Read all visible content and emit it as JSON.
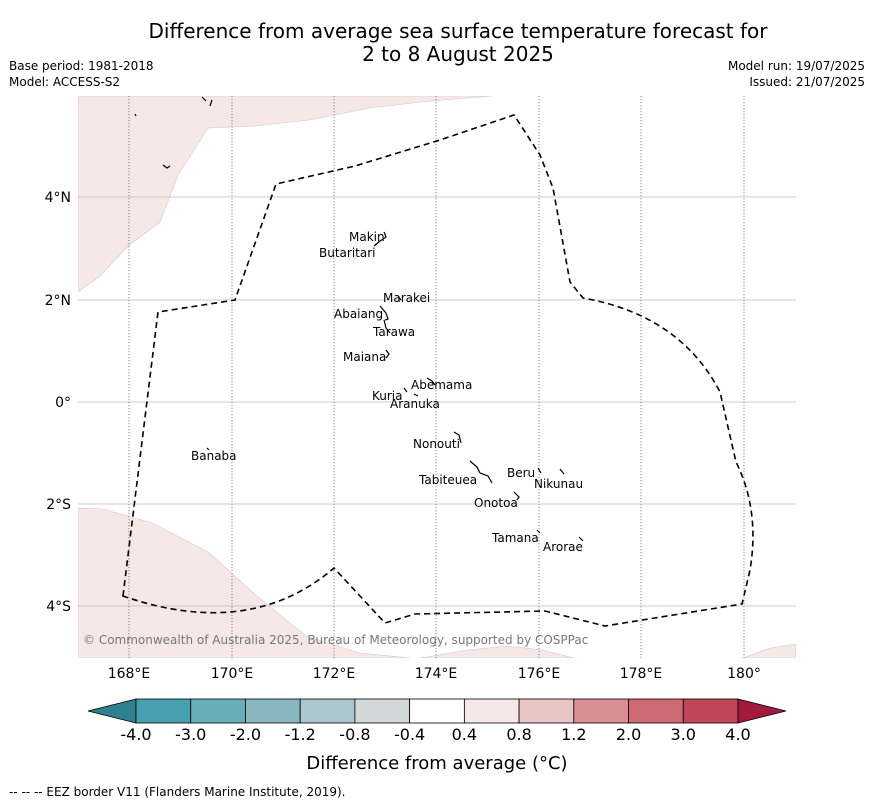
{
  "header": {
    "title_line1": "Difference from average sea surface temperature forecast for",
    "title_line2": "2 to 8 August 2025",
    "base_period": "Base period: 1981-2018",
    "model": "Model: ACCESS-S2",
    "model_run": "Model run: 19/07/2025",
    "issued": "Issued: 21/07/2025"
  },
  "map": {
    "lat_ticks": [
      "4°N",
      "2°N",
      "0°",
      "2°S",
      "4°S"
    ],
    "lon_ticks": [
      "168°E",
      "170°E",
      "172°E",
      "174°E",
      "176°E",
      "178°E",
      "180°"
    ],
    "islands": [
      {
        "name": "Makin"
      },
      {
        "name": "Butaritari"
      },
      {
        "name": "Marakei"
      },
      {
        "name": "Abaiang"
      },
      {
        "name": "Tarawa"
      },
      {
        "name": "Maiana"
      },
      {
        "name": "Abemama"
      },
      {
        "name": "Kuria"
      },
      {
        "name": "Aranuka"
      },
      {
        "name": "Banaba"
      },
      {
        "name": "Nonouti"
      },
      {
        "name": "Beru"
      },
      {
        "name": "Tabiteuea"
      },
      {
        "name": "Nikunau"
      },
      {
        "name": "Onotoa"
      },
      {
        "name": "Tamana"
      },
      {
        "name": "Arorae"
      }
    ],
    "copyright": "© Commonwealth of Australia 2025, Bureau of Meteorology, supported by COSPPac",
    "eez_line": "dashed black"
  },
  "colorbar": {
    "labels": [
      "-4.0",
      "-3.0",
      "-2.0",
      "-1.2",
      "-0.8",
      "-0.4",
      "0.4",
      "0.8",
      "1.2",
      "2.0",
      "3.0",
      "4.0"
    ],
    "colors": [
      "#2f7f8c",
      "#46a0b0",
      "#68adb8",
      "#88b6c1",
      "#a9c7cc",
      "#d2d7d7",
      "#ffffff",
      "#f5e8e7",
      "#e8c5c3",
      "#da8f97",
      "#cd6a74",
      "#c2465a",
      "#a31a3c"
    ],
    "title": "Difference from average (°C)"
  },
  "footnote": "-- -- -- EEZ border V11 (Flanders Marine Institute, 2019).",
  "colors": {
    "land": "#f5e8e7",
    "grid": "#c9b9bb",
    "eez": "#000000"
  }
}
